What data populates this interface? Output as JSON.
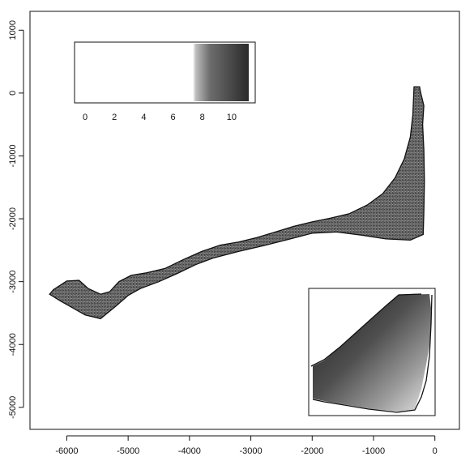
{
  "chart_data": {
    "type": "heatmap",
    "title": "",
    "xlabel": "",
    "ylabel": "",
    "xlim": [
      -6600,
      400
    ],
    "ylim": [
      -5350,
      1300
    ],
    "x_ticks": [
      -6000,
      -5000,
      -4000,
      -3000,
      -2000,
      -1000,
      0
    ],
    "y_ticks": [
      1000,
      0,
      -1000,
      -2000,
      -3000,
      -4000,
      -5000
    ],
    "x_tick_labels": [
      "-6000",
      "-5000",
      "-4000",
      "-3000",
      "-2000",
      "-1000",
      "0"
    ],
    "y_tick_labels": [
      "1000",
      "0",
      "-1000",
      "-2000",
      "-3000",
      "-4000",
      "-5000"
    ],
    "colorbar": {
      "position": "top-left inset",
      "range": [
        -0.5,
        11
      ],
      "ticks": [
        0,
        2,
        4,
        6,
        8,
        10
      ],
      "tick_labels": [
        "0",
        "2",
        "4",
        "6",
        "8",
        "10"
      ],
      "colors": [
        "#ffffff",
        "#2b2b2b"
      ]
    },
    "zoom_inset": {
      "position": "bottom-right inset",
      "description_of_region": "enlarged view of the north-east arm near x≈-300, y≈-2300"
    },
    "region_outline": [
      [
        -6220,
        -3130
      ],
      [
        -6000,
        -2990
      ],
      [
        -5800,
        -2980
      ],
      [
        -5650,
        -3110
      ],
      [
        -5450,
        -3200
      ],
      [
        -5300,
        -3160
      ],
      [
        -5150,
        -3000
      ],
      [
        -4950,
        -2900
      ],
      [
        -4700,
        -2860
      ],
      [
        -4400,
        -2790
      ],
      [
        -4100,
        -2650
      ],
      [
        -3800,
        -2520
      ],
      [
        -3500,
        -2420
      ],
      [
        -3200,
        -2370
      ],
      [
        -2900,
        -2300
      ],
      [
        -2600,
        -2210
      ],
      [
        -2300,
        -2120
      ],
      [
        -2000,
        -2050
      ],
      [
        -1700,
        -1990
      ],
      [
        -1400,
        -1920
      ],
      [
        -1100,
        -1780
      ],
      [
        -850,
        -1600
      ],
      [
        -650,
        -1350
      ],
      [
        -500,
        -1050
      ],
      [
        -400,
        -700
      ],
      [
        -360,
        -350
      ],
      [
        -340,
        100
      ],
      [
        -250,
        100
      ],
      [
        -230,
        0
      ],
      [
        -180,
        -200
      ],
      [
        -200,
        -500
      ],
      [
        -180,
        -900
      ],
      [
        -170,
        -1400
      ],
      [
        -180,
        -1900
      ],
      [
        -190,
        -2250
      ],
      [
        -400,
        -2340
      ],
      [
        -800,
        -2320
      ],
      [
        -1200,
        -2260
      ],
      [
        -1600,
        -2210
      ],
      [
        -2000,
        -2230
      ],
      [
        -2400,
        -2330
      ],
      [
        -2800,
        -2430
      ],
      [
        -3200,
        -2520
      ],
      [
        -3600,
        -2620
      ],
      [
        -3900,
        -2730
      ],
      [
        -4200,
        -2870
      ],
      [
        -4500,
        -3000
      ],
      [
        -4800,
        -3110
      ],
      [
        -5000,
        -3220
      ],
      [
        -5200,
        -3390
      ],
      [
        -5450,
        -3590
      ],
      [
        -5700,
        -3530
      ],
      [
        -5900,
        -3420
      ],
      [
        -6100,
        -3310
      ],
      [
        -6280,
        -3200
      ]
    ],
    "value_gradient_along_region": [
      {
        "s": 0.0,
        "value": 10.2
      },
      {
        "s": 0.1,
        "value": 8.8
      },
      {
        "s": 0.2,
        "value": 7.6
      },
      {
        "s": 0.35,
        "value": 6.9
      },
      {
        "s": 0.5,
        "value": 6.5
      },
      {
        "s": 0.65,
        "value": 6.3
      },
      {
        "s": 0.8,
        "value": 6.8
      },
      {
        "s": 0.9,
        "value": 7.4
      },
      {
        "s": 1.0,
        "value": 8.6
      }
    ],
    "grid": false
  }
}
